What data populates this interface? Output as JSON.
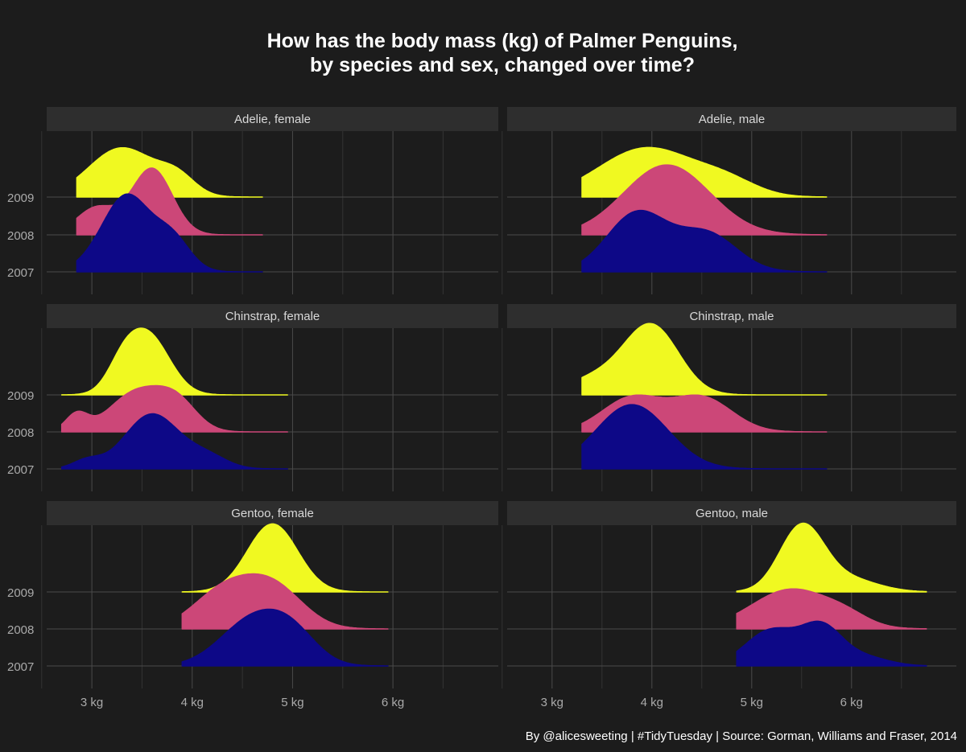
{
  "colors": {
    "background": "#1c1c1c",
    "strip": "#2e2e2e",
    "grid_major": "#4a4a4a",
    "grid_minor": "#333333",
    "text": "#ffffff",
    "axis_text": "#aaaaaa",
    "year_2007": "#0d0887",
    "year_2008": "#cc4778",
    "year_2009": "#f0f921"
  },
  "chart_data": {
    "type": "ridgeline-density",
    "title_line1": "How has the body mass (kg) of Palmer Penguins,",
    "title_line2": "by species and sex, changed over time?",
    "caption": "By @alicesweeting | #TidyTuesday | Source: Gorman, Williams and Fraser, 2014",
    "x_unit": "kg",
    "x_ticks": [
      3,
      4,
      5,
      6
    ],
    "x_tick_labels": [
      "3 kg",
      "4 kg",
      "5 kg",
      "6 kg"
    ],
    "xlim": [
      2.55,
      7.05
    ],
    "y_categories": [
      "2007",
      "2008",
      "2009"
    ],
    "grid": true,
    "panels": [
      {
        "label": "Adelie, female",
        "range": [
          2.85,
          4.7
        ],
        "ridges": [
          {
            "year": "2007",
            "peaks": [
              [
                3.35,
                0.23,
                2.0
              ],
              [
                3.8,
                0.18,
                0.85
              ],
              [
                3.0,
                0.18,
                0.15
              ]
            ]
          },
          {
            "year": "2008",
            "peaks": [
              [
                3.6,
                0.2,
                1.75
              ],
              [
                3.05,
                0.2,
                0.72
              ]
            ]
          },
          {
            "year": "2009",
            "peaks": [
              [
                3.3,
                0.33,
                1.3
              ],
              [
                3.85,
                0.18,
                0.45
              ]
            ]
          }
        ]
      },
      {
        "label": "Adelie, male",
        "range": [
          3.3,
          5.75
        ],
        "ridges": [
          {
            "year": "2007",
            "peaks": [
              [
                3.85,
                0.3,
                1.55
              ],
              [
                4.55,
                0.3,
                1.0
              ]
            ]
          },
          {
            "year": "2008",
            "peaks": [
              [
                4.15,
                0.43,
                1.85
              ]
            ]
          },
          {
            "year": "2009",
            "peaks": [
              [
                3.95,
                0.48,
                1.3
              ],
              [
                4.75,
                0.3,
                0.35
              ]
            ]
          }
        ]
      },
      {
        "label": "Chinstrap, female",
        "range": [
          2.7,
          4.95
        ],
        "ridges": [
          {
            "year": "2007",
            "peaks": [
              [
                3.6,
                0.27,
                1.45
              ],
              [
                4.15,
                0.2,
                0.32
              ],
              [
                2.95,
                0.14,
                0.22
              ]
            ]
          },
          {
            "year": "2008",
            "peaks": [
              [
                3.45,
                0.27,
                1.05
              ],
              [
                3.85,
                0.2,
                0.7
              ],
              [
                2.85,
                0.11,
                0.45
              ]
            ]
          },
          {
            "year": "2009",
            "peaks": [
              [
                3.55,
                0.22,
                1.6
              ],
              [
                3.3,
                0.15,
                0.5
              ]
            ]
          }
        ]
      },
      {
        "label": "Chinstrap, male",
        "range": [
          3.3,
          5.75
        ],
        "ridges": [
          {
            "year": "2007",
            "peaks": [
              [
                3.8,
                0.36,
                1.7
              ]
            ]
          },
          {
            "year": "2008",
            "peaks": [
              [
                3.8,
                0.3,
                0.9
              ],
              [
                4.5,
                0.3,
                0.9
              ]
            ]
          },
          {
            "year": "2009",
            "peaks": [
              [
                4.0,
                0.27,
                1.8
              ],
              [
                3.45,
                0.3,
                0.45
              ]
            ]
          }
        ]
      },
      {
        "label": "Gentoo, female",
        "range": [
          3.9,
          5.95
        ],
        "ridges": [
          {
            "year": "2007",
            "peaks": [
              [
                4.6,
                0.32,
                1.2
              ],
              [
                5.0,
                0.25,
                0.7
              ]
            ]
          },
          {
            "year": "2008",
            "peaks": [
              [
                4.3,
                0.3,
                0.95
              ],
              [
                4.8,
                0.3,
                1.1
              ]
            ]
          },
          {
            "year": "2009",
            "peaks": [
              [
                4.8,
                0.25,
                1.8
              ]
            ]
          }
        ]
      },
      {
        "label": "Gentoo, male",
        "range": [
          4.85,
          6.75
        ],
        "ridges": [
          {
            "year": "2007",
            "peaks": [
              [
                5.2,
                0.26,
                0.95
              ],
              [
                5.7,
                0.2,
                0.95
              ],
              [
                6.1,
                0.25,
                0.25
              ]
            ]
          },
          {
            "year": "2008",
            "peaks": [
              [
                5.4,
                0.4,
                1.05
              ],
              [
                5.95,
                0.22,
                0.2
              ]
            ]
          },
          {
            "year": "2009",
            "peaks": [
              [
                5.5,
                0.22,
                1.7
              ],
              [
                5.95,
                0.3,
                0.35
              ]
            ]
          }
        ]
      }
    ]
  }
}
